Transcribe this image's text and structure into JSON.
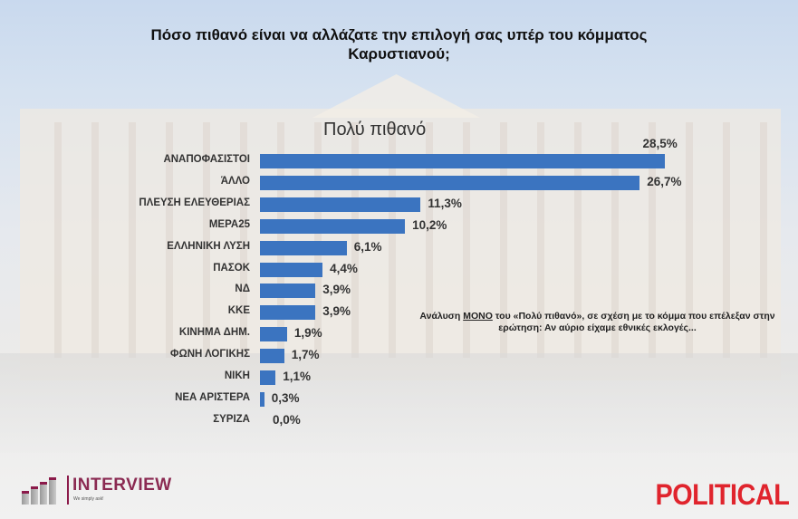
{
  "title_line1": "Πόσο πιθανό είναι να αλλάζατε την επιλογή σας υπέρ του κόμματος",
  "title_line2": "Καρυστιανού;",
  "subtitle": "Πολύ πιθανό",
  "note": {
    "before": "Ανάλυση ",
    "underlined": "ΜΟΝΟ",
    "after": " του «Πολύ πιθανό», σε σχέση με το κόμμα που επέλεξαν στην ερώτηση: Αν αύριο είχαμε εθνικές εκλογές..."
  },
  "logos": {
    "left": "INTERVIEW",
    "left_tagline": "We simply ask!",
    "right": "POLITICAL"
  },
  "colors": {
    "bar": "#3b74c0",
    "political": "#e0242d",
    "interview": "#8b2a52"
  },
  "bars": [
    {
      "label": "ΑΝΑΠΟΦΑΣΙΣΤΟΙ",
      "value": 28.5,
      "text": "28,5%"
    },
    {
      "label": "ΆΛΛΟ",
      "value": 26.7,
      "text": "26,7%"
    },
    {
      "label": "ΠΛΕΥΣΗ ΕΛΕΥΘΕΡΙΑΣ",
      "value": 11.3,
      "text": "11,3%"
    },
    {
      "label": "ΜΕΡΑ25",
      "value": 10.2,
      "text": "10,2%"
    },
    {
      "label": "ΕΛΛΗΝΙΚΗ ΛΥΣΗ",
      "value": 6.1,
      "text": "6,1%"
    },
    {
      "label": "ΠΑΣΟΚ",
      "value": 4.4,
      "text": "4,4%"
    },
    {
      "label": "ΝΔ",
      "value": 3.9,
      "text": "3,9%"
    },
    {
      "label": "ΚΚΕ",
      "value": 3.9,
      "text": "3,9%"
    },
    {
      "label": "ΚΙΝΗΜΑ ΔΗΜ.",
      "value": 1.9,
      "text": "1,9%"
    },
    {
      "label": "ΦΩΝΗ ΛΟΓΙΚΗΣ",
      "value": 1.7,
      "text": "1,7%"
    },
    {
      "label": "ΝΙΚΗ",
      "value": 1.1,
      "text": "1,1%"
    },
    {
      "label": "ΝΕΑ ΑΡΙΣΤΕΡΑ",
      "value": 0.3,
      "text": "0,3%"
    },
    {
      "label": "ΣΥΡΙΖΑ",
      "value": 0.0,
      "text": "0,0%"
    }
  ],
  "chart_data": {
    "type": "bar",
    "orientation": "horizontal",
    "title": "Πόσο πιθανό είναι να αλλάζατε την επιλογή σας υπέρ του κόμματος Καρυστιανού;",
    "subtitle": "Πολύ πιθανό",
    "categories": [
      "ΑΝΑΠΟΦΑΣΙΣΤΟΙ",
      "ΆΛΛΟ",
      "ΠΛΕΥΣΗ ΕΛΕΥΘΕΡΙΑΣ",
      "ΜΕΡΑ25",
      "ΕΛΛΗΝΙΚΗ ΛΥΣΗ",
      "ΠΑΣΟΚ",
      "ΝΔ",
      "ΚΚΕ",
      "ΚΙΝΗΜΑ ΔΗΜ.",
      "ΦΩΝΗ ΛΟΓΙΚΗΣ",
      "ΝΙΚΗ",
      "ΝΕΑ ΑΡΙΣΤΕΡΑ",
      "ΣΥΡΙΖΑ"
    ],
    "values": [
      28.5,
      26.7,
      11.3,
      10.2,
      6.1,
      4.4,
      3.9,
      3.9,
      1.9,
      1.7,
      1.1,
      0.3,
      0.0
    ],
    "unit": "%",
    "xlabel": "",
    "ylabel": "",
    "xlim": [
      0,
      30
    ],
    "grid": false,
    "legend": null,
    "annotations": [
      "Ανάλυση ΜΟΝΟ του «Πολύ πιθανό», σε σχέση με το κόμμα που επέλεξαν στην ερώτηση: Αν αύριο είχαμε εθνικές εκλογές..."
    ]
  }
}
